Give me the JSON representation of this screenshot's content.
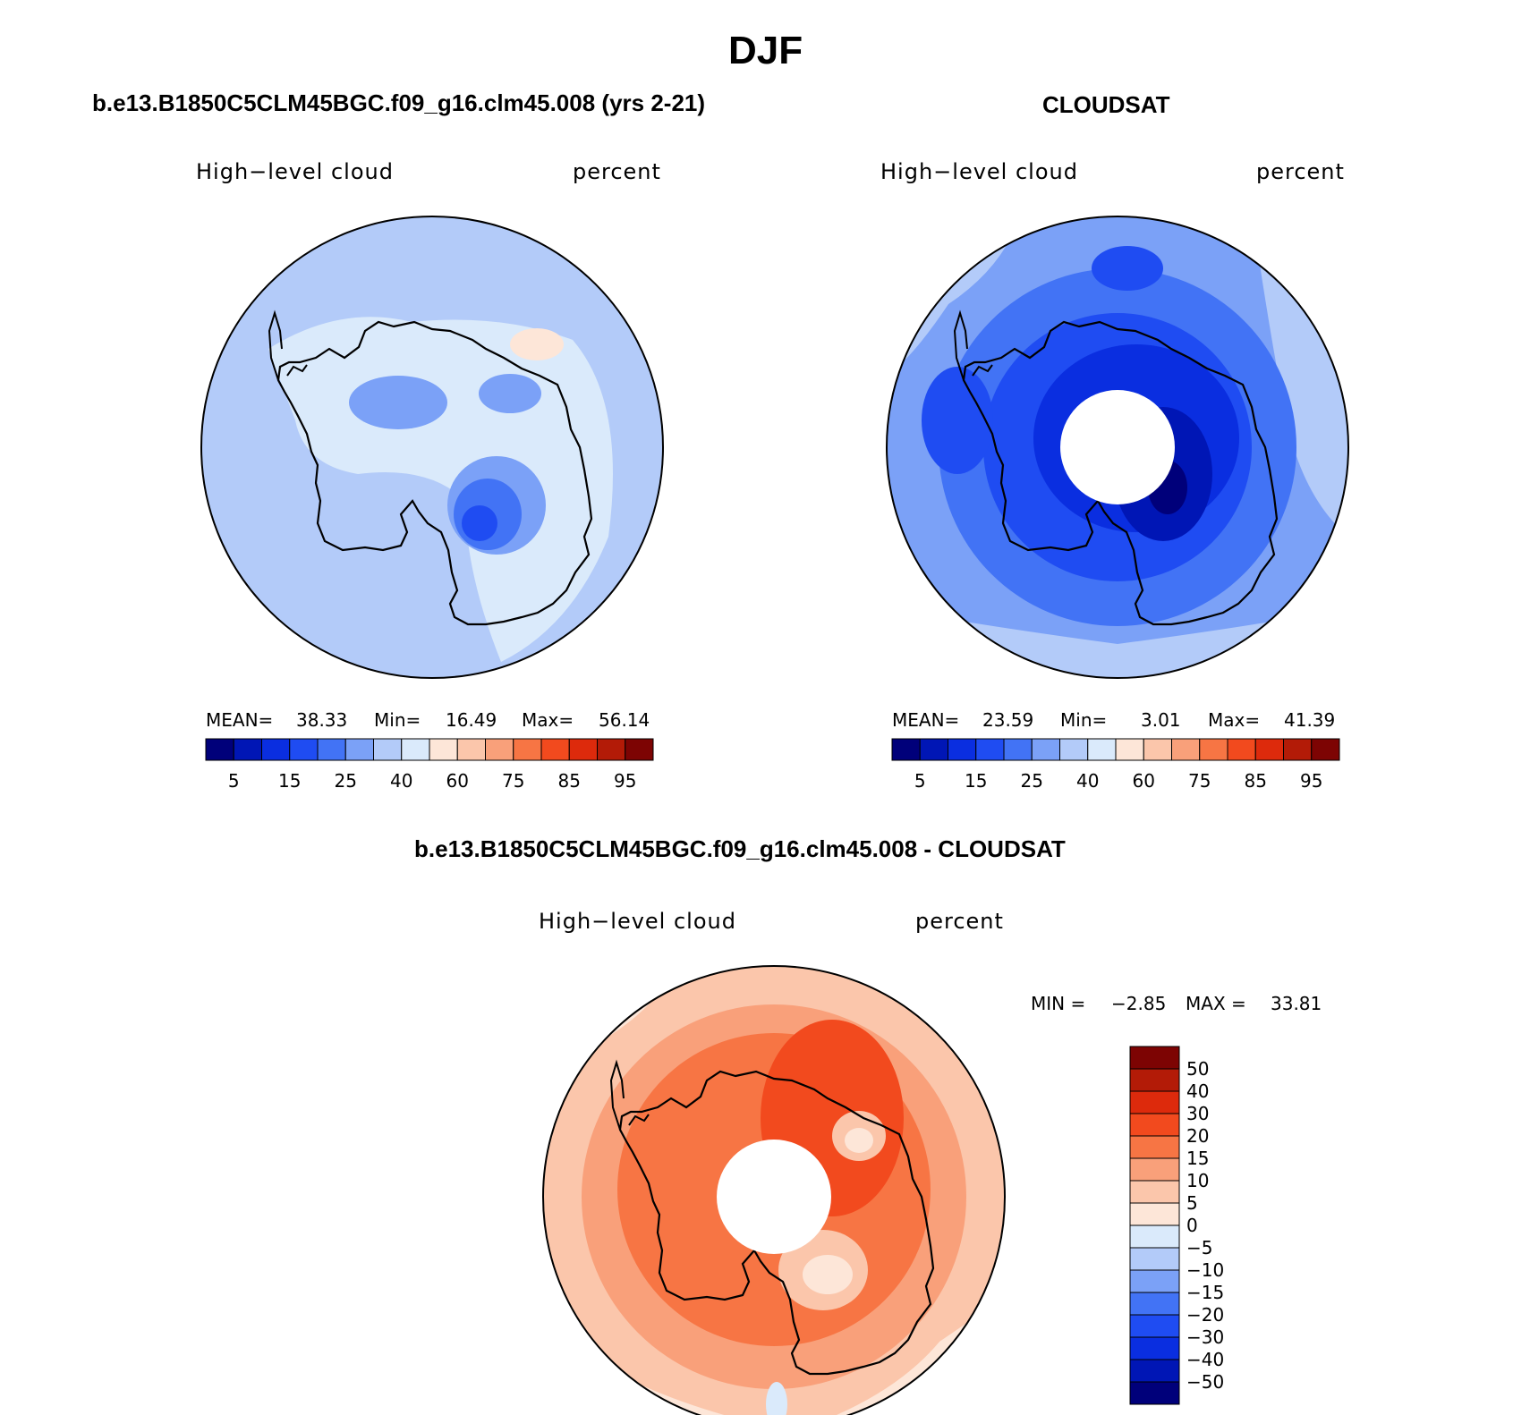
{
  "page": {
    "title": "DJF"
  },
  "panels": [
    {
      "id": "model",
      "header": "b.e13.B1850C5CLM45BGC.f09_g16.clm45.008 (yrs 2-21)",
      "variable": "High−level cloud",
      "units": "percent",
      "stats": {
        "mean_label": "MEAN=",
        "mean": "38.33",
        "min_label": "Min=",
        "min": "16.49",
        "max_label": "Max=",
        "max": "56.14"
      }
    },
    {
      "id": "obs",
      "header": "CLOUDSAT",
      "variable": "High−level cloud",
      "units": "percent",
      "stats": {
        "mean_label": "MEAN=",
        "mean": "23.59",
        "min_label": "Min=",
        "min": "3.01",
        "max_label": "Max=",
        "max": "41.39"
      }
    },
    {
      "id": "diff",
      "header": "b.e13.B1850C5CLM45BGC.f09_g16.clm45.008 - CLOUDSAT",
      "variable": "High−level cloud",
      "units": "percent",
      "stats": {
        "min_label": "MIN =",
        "min": "−2.85",
        "max_label": "MAX =",
        "max": "33.81"
      }
    }
  ],
  "colorbar_abs": {
    "colors": [
      "#00007a",
      "#0016b5",
      "#0a2ee0",
      "#1f4cf2",
      "#4273f5",
      "#7ba1f7",
      "#b3cbf9",
      "#daeafb",
      "#fde6d8",
      "#fbc6ab",
      "#f9a07a",
      "#f77544",
      "#f24a1e",
      "#dd2a0c",
      "#b31b07",
      "#7d0403"
    ],
    "labels": [
      "5",
      "15",
      "25",
      "40",
      "60",
      "75",
      "85",
      "95"
    ]
  },
  "colorbar_diff": {
    "colors": [
      "#7d0403",
      "#b31b07",
      "#dd2a0c",
      "#f24a1e",
      "#f77544",
      "#f9a07a",
      "#fbc6ab",
      "#fde6d8",
      "#daeafb",
      "#b3cbf9",
      "#7ba1f7",
      "#4273f5",
      "#1f4cf2",
      "#0a2ee0",
      "#0016b5",
      "#00007a"
    ],
    "labels": [
      "50",
      "40",
      "30",
      "20",
      "15",
      "10",
      "5",
      "0",
      "−5",
      "−10",
      "−15",
      "−20",
      "−30",
      "−40",
      "−50"
    ]
  },
  "map_colors": {
    "model_base": "#b3cbf9",
    "model_light": "#daeafb",
    "model_mid": "#7ba1f7",
    "model_dark": "#4273f5",
    "model_deep": "#1f4cf2",
    "model_warm": "#fde6d8",
    "obs_base": "#7ba1f7",
    "obs_light": "#b3cbf9",
    "obs_mid": "#4273f5",
    "obs_dark": "#1f4cf2",
    "obs_deeper": "#0a2ee0",
    "obs_deepest": "#0016b5",
    "obs_navy": "#00007a",
    "diff_base": "#fbc6ab",
    "diff_light": "#fde6d8",
    "diff_mid": "#f9a07a",
    "diff_dark": "#f77544",
    "diff_deep": "#f24a1e",
    "diff_deeper": "#dd2a0c",
    "diff_blue": "#daeafb"
  }
}
